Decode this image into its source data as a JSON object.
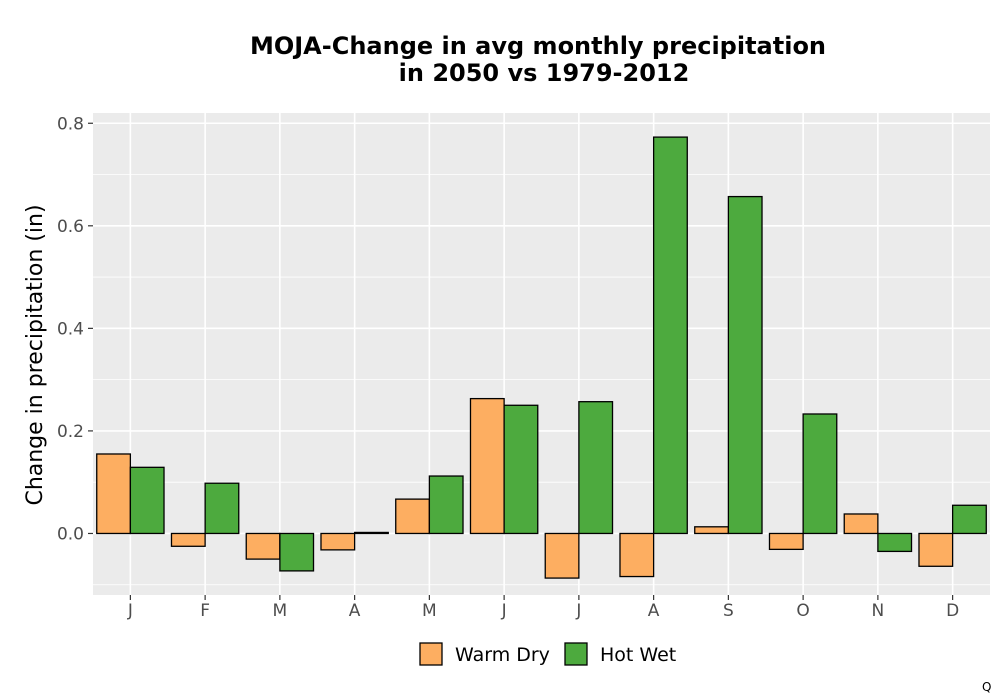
{
  "chart_data": {
    "type": "bar",
    "title_line1": "MOJA-Change in avg monthly precipitation",
    "title_line2": "in 2050 vs 1979-2012",
    "xlabel": "",
    "ylabel": "Change in precipitation (in)",
    "ylim": [
      -0.12,
      0.82
    ],
    "yticks": [
      0.0,
      0.2,
      0.4,
      0.6,
      0.8
    ],
    "ytick_labels": [
      "0.0",
      "0.2",
      "0.4",
      "0.6",
      "0.8"
    ],
    "categories": [
      "J",
      "F",
      "M",
      "A",
      "M",
      "J",
      "J",
      "A",
      "S",
      "O",
      "N",
      "D"
    ],
    "series": [
      {
        "name": "Warm Dry",
        "color": "#fdae61",
        "values": [
          0.155,
          -0.025,
          -0.05,
          -0.032,
          0.067,
          0.263,
          -0.087,
          -0.084,
          0.013,
          -0.031,
          0.038,
          -0.064
        ]
      },
      {
        "name": "Hot Wet",
        "color": "#4daa3e",
        "values": [
          0.129,
          0.098,
          -0.073,
          0.002,
          0.112,
          0.25,
          0.257,
          0.773,
          0.657,
          0.233,
          -0.035,
          0.055
        ]
      }
    ],
    "grid": true,
    "panel_background": "#ebebeb",
    "legend_position": "bottom"
  },
  "corner_mark": "Q"
}
